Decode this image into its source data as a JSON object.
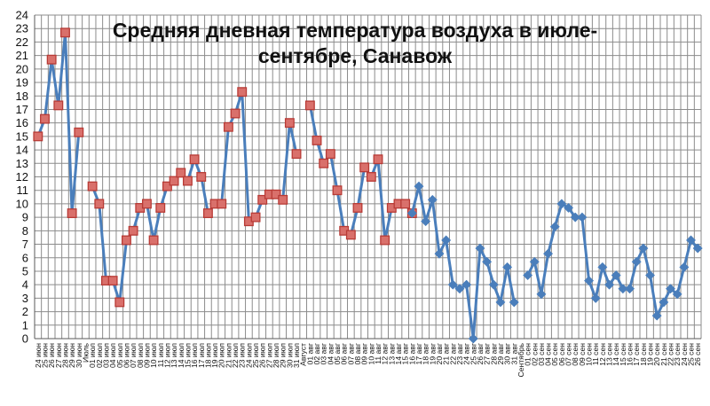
{
  "chart_data": {
    "type": "line",
    "title_lines": [
      "Средняя дневная температура воздуха в июле-",
      "сентябре, Санавож"
    ],
    "xlabel": "",
    "ylabel": "",
    "ylim": [
      0,
      24
    ],
    "yticks": [
      0,
      1,
      2,
      3,
      4,
      5,
      6,
      7,
      8,
      9,
      10,
      11,
      12,
      13,
      14,
      15,
      16,
      17,
      18,
      19,
      20,
      21,
      22,
      23,
      24
    ],
    "grid": true,
    "legend": "none",
    "colors": {
      "line": "#4a7ebb",
      "marker_square_fill": "#d9706b",
      "marker_square_stroke": "#b83b36",
      "marker_diamond": "#4a7ebb",
      "grid": "#8c8c8c"
    },
    "categories": [
      "24 июн",
      "25 июн",
      "26 июн",
      "27 июн",
      "28 июн",
      "29 июн",
      "30 июн",
      "Июль",
      "01 июл",
      "02 июл",
      "03 июл",
      "04 июл",
      "05 июл",
      "06 июл",
      "07 июл",
      "08 июл",
      "09 июл",
      "10 июл",
      "11 июл",
      "12 июл",
      "13 июл",
      "14 июл",
      "15 июл",
      "16 июл",
      "17 июл",
      "18 июл",
      "19 июл",
      "20 июл",
      "21 июл",
      "22 июл",
      "23 июл",
      "24 июл",
      "25 июл",
      "26 июл",
      "27 июл",
      "28 июл",
      "29 июл",
      "30 июл",
      "31 июл",
      "Август",
      "01 авг",
      "02 авг",
      "03 авг",
      "04 авг",
      "05 авг",
      "06 авг",
      "07 авг",
      "08 авг",
      "09 авг",
      "10 авг",
      "11 авг",
      "12 авг",
      "13 авг",
      "14 авг",
      "15 авг",
      "16 авг",
      "17 авг",
      "18 авг",
      "19 авг",
      "20 авг",
      "21 авг",
      "22 авг",
      "23 авг",
      "24 авг",
      "25 авг",
      "26 авг",
      "27 авг",
      "28 авг",
      "29 авг",
      "30 авг",
      "31 авг",
      "Сентябрь",
      "01 сен",
      "02 сен",
      "03 сен",
      "04 сен",
      "05 сен",
      "06 сен",
      "07 сен",
      "08 сен",
      "09 сен",
      "10 сен",
      "11 сен",
      "12 сен",
      "13 сен",
      "14 сен",
      "15 сен",
      "16 сен",
      "17 сен",
      "18 сен",
      "19 сен",
      "20 сен",
      "21 сен",
      "22 сен",
      "23 сен",
      "24 сен",
      "25 сен",
      "26 сен"
    ],
    "series": [
      {
        "marker": "square",
        "values": [
          15.0,
          16.3,
          20.7,
          17.3,
          22.7,
          9.3,
          15.3,
          null,
          11.3,
          10.0,
          4.3,
          4.3,
          2.7,
          7.3,
          8.0,
          9.7,
          10.0,
          7.3,
          9.7,
          11.3,
          11.7,
          12.3,
          11.7,
          13.3,
          12.0,
          9.3,
          10.0,
          10.0,
          15.7,
          16.7,
          18.3,
          8.7,
          9.0,
          10.3,
          10.7,
          10.7,
          10.3,
          16.0,
          13.7,
          null,
          17.3,
          14.7,
          13.0,
          13.7,
          11.0,
          8.0,
          7.7,
          9.7,
          12.7,
          12.0,
          13.3,
          7.3,
          9.7,
          10.0,
          10.0,
          9.3,
          null,
          null,
          null,
          null,
          null,
          null,
          null,
          null,
          null,
          null,
          null,
          null,
          null,
          null,
          null,
          null,
          null,
          null,
          null,
          null,
          null,
          null,
          null,
          null,
          null,
          null,
          null,
          null,
          null,
          null,
          null,
          null,
          null,
          null,
          null,
          null,
          null,
          null,
          null,
          null,
          null,
          null
        ]
      },
      {
        "marker": "diamond",
        "values": [
          null,
          null,
          null,
          null,
          null,
          null,
          null,
          null,
          null,
          null,
          null,
          null,
          null,
          null,
          null,
          null,
          null,
          null,
          null,
          null,
          null,
          null,
          null,
          null,
          null,
          null,
          null,
          null,
          null,
          null,
          null,
          null,
          null,
          null,
          null,
          null,
          null,
          null,
          null,
          null,
          null,
          null,
          null,
          null,
          null,
          null,
          null,
          null,
          null,
          null,
          null,
          null,
          null,
          null,
          null,
          9.3,
          11.3,
          8.7,
          10.3,
          6.3,
          7.3,
          4.0,
          3.7,
          4.0,
          0.0,
          6.7,
          5.7,
          4.0,
          2.7,
          5.3,
          2.7,
          null,
          4.7,
          5.7,
          3.3,
          6.3,
          8.3,
          10.0,
          9.7,
          9.0,
          9.0,
          4.3,
          3.0,
          5.3,
          4.0,
          4.7,
          3.7,
          3.7,
          5.7,
          6.7,
          4.7,
          1.7,
          2.7,
          3.7,
          3.3,
          5.3,
          7.3,
          6.7
        ]
      }
    ]
  }
}
